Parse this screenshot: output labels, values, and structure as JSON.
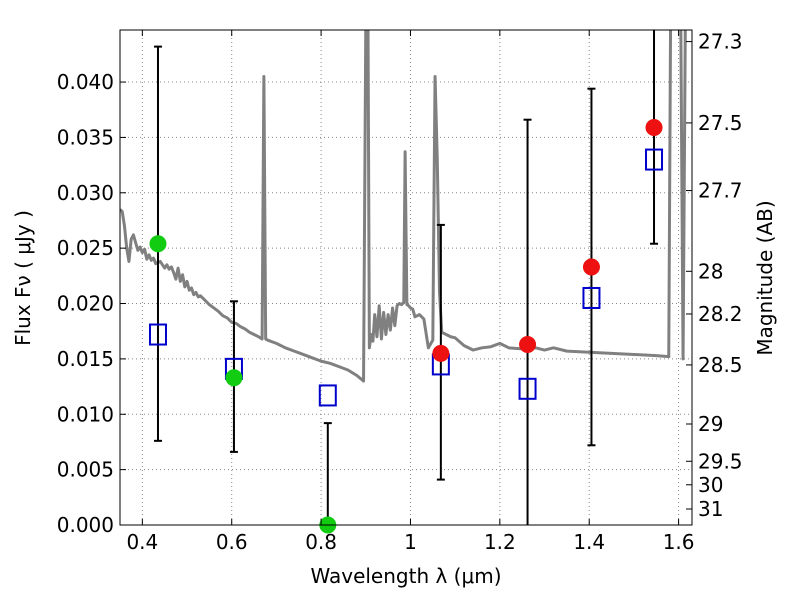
{
  "chart_data": {
    "type": "scatter",
    "xlabel": "Wavelength  λ (μm)",
    "ylabel": "Flux  Fν  ( μJy )",
    "y2label": "Magnitude (AB)",
    "xlim": [
      0.35,
      1.63
    ],
    "ylim": [
      0.0,
      0.0447
    ],
    "x_ticks": [
      0.4,
      0.6,
      0.8,
      1.0,
      1.2,
      1.4,
      1.6
    ],
    "x_tick_labels": [
      "0.4",
      "0.6",
      "0.8",
      "1",
      "1.2",
      "1.4",
      "1.6"
    ],
    "y_ticks": [
      0.0,
      0.005,
      0.01,
      0.015,
      0.02,
      0.025,
      0.03,
      0.035,
      0.04
    ],
    "y_tick_labels": [
      "0.000",
      "0.005",
      "0.010",
      "0.015",
      "0.020",
      "0.025",
      "0.030",
      "0.035",
      "0.040"
    ],
    "y2_ticks": [
      27.3,
      27.5,
      27.7,
      28,
      28.2,
      28.5,
      29,
      29.5,
      30,
      31
    ],
    "y2_tick_labels": [
      "27.3",
      "27.5",
      "27.7",
      "28",
      "28.2",
      "28.5",
      "29",
      "29.5",
      "30",
      "31"
    ],
    "grid": true,
    "series": [
      {
        "kind": "line",
        "color": "#808080",
        "x": [
          0.35,
          0.355,
          0.36,
          0.365,
          0.37,
          0.375,
          0.38,
          0.385,
          0.39,
          0.395,
          0.4,
          0.405,
          0.41,
          0.415,
          0.42,
          0.425,
          0.43,
          0.44,
          0.45,
          0.455,
          0.46,
          0.465,
          0.47,
          0.475,
          0.48,
          0.485,
          0.49,
          0.495,
          0.5,
          0.505,
          0.51,
          0.515,
          0.52,
          0.525,
          0.53,
          0.54,
          0.55,
          0.56,
          0.57,
          0.58,
          0.59,
          0.6,
          0.61,
          0.62,
          0.63,
          0.64,
          0.65,
          0.66,
          0.668,
          0.672,
          0.676,
          0.68,
          0.7,
          0.72,
          0.74,
          0.76,
          0.78,
          0.8,
          0.82,
          0.84,
          0.86,
          0.88,
          0.895,
          0.9,
          0.902,
          0.905,
          0.908,
          0.912,
          0.916,
          0.92,
          0.925,
          0.93,
          0.935,
          0.94,
          0.945,
          0.95,
          0.955,
          0.96,
          0.965,
          0.97,
          0.975,
          0.98,
          0.985,
          0.988,
          0.992,
          0.996,
          1.0,
          1.005,
          1.01,
          1.02,
          1.03,
          1.04,
          1.05,
          1.055,
          1.06,
          1.065,
          1.07,
          1.08,
          1.09,
          1.1,
          1.12,
          1.14,
          1.16,
          1.18,
          1.2,
          1.22,
          1.25,
          1.28,
          1.3,
          1.32,
          1.35,
          1.4,
          1.45,
          1.5,
          1.55,
          1.578,
          1.582,
          1.585,
          1.59,
          1.6,
          1.605,
          1.61,
          1.615,
          1.62,
          1.625,
          1.63
        ],
        "y": [
          0.0285,
          0.0283,
          0.027,
          0.025,
          0.0238,
          0.0258,
          0.0262,
          0.0255,
          0.0248,
          0.0251,
          0.0246,
          0.0249,
          0.024,
          0.0244,
          0.0239,
          0.0241,
          0.0236,
          0.0238,
          0.0232,
          0.0235,
          0.0231,
          0.0233,
          0.0228,
          0.0222,
          0.0232,
          0.022,
          0.0226,
          0.0215,
          0.022,
          0.0212,
          0.0214,
          0.0208,
          0.021,
          0.0206,
          0.0207,
          0.0203,
          0.0199,
          0.0196,
          0.0193,
          0.0189,
          0.0187,
          0.0183,
          0.0182,
          0.0179,
          0.0177,
          0.0174,
          0.0172,
          0.017,
          0.0168,
          0.0405,
          0.0168,
          0.0167,
          0.0164,
          0.016,
          0.0157,
          0.0154,
          0.0151,
          0.0148,
          0.0146,
          0.0143,
          0.014,
          0.0135,
          0.013,
          0.045,
          0.045,
          0.045,
          0.016,
          0.0172,
          0.0166,
          0.019,
          0.017,
          0.0198,
          0.0168,
          0.0192,
          0.0172,
          0.019,
          0.0176,
          0.0196,
          0.018,
          0.0198,
          0.02,
          0.0199,
          0.0201,
          0.0337,
          0.0199,
          0.0198,
          0.0196,
          0.0195,
          0.0188,
          0.019,
          0.0186,
          0.016,
          0.0167,
          0.0405,
          0.033,
          0.021,
          0.0174,
          0.0172,
          0.017,
          0.0169,
          0.0162,
          0.0158,
          0.016,
          0.0161,
          0.0164,
          0.016,
          0.0159,
          0.016,
          0.0158,
          0.016,
          0.0157,
          0.0156,
          0.0155,
          0.0154,
          0.0153,
          0.0152,
          0.045,
          0.045,
          0.045,
          0.045,
          0.045,
          0.015,
          0.045,
          0.045,
          0.045,
          0.045
        ]
      },
      {
        "kind": "errorbars",
        "color": "#000000",
        "x": [
          0.435,
          0.605,
          0.815,
          1.068,
          1.262,
          1.405,
          1.545
        ],
        "ylow": [
          0.0076,
          0.0066,
          0.0,
          0.0041,
          0.0,
          0.0072,
          0.0254
        ],
        "yhigh": [
          0.0432,
          0.0202,
          0.0092,
          0.0271,
          0.0366,
          0.0394,
          0.045
        ]
      },
      {
        "kind": "squares",
        "color": "#0000cc",
        "x": [
          0.435,
          0.605,
          0.815,
          1.068,
          1.262,
          1.405,
          1.545
        ],
        "y": [
          0.0172,
          0.0141,
          0.0117,
          0.0145,
          0.0123,
          0.0205,
          0.033
        ]
      },
      {
        "kind": "dots",
        "color": "#11cc11",
        "x": [
          0.435,
          0.605,
          0.815
        ],
        "y": [
          0.0254,
          0.0133,
          0.0
        ]
      },
      {
        "kind": "dots",
        "color": "#ee1111",
        "x": [
          1.068,
          1.262,
          1.405,
          1.545
        ],
        "y": [
          0.0155,
          0.0163,
          0.0233,
          0.0359
        ]
      }
    ]
  }
}
